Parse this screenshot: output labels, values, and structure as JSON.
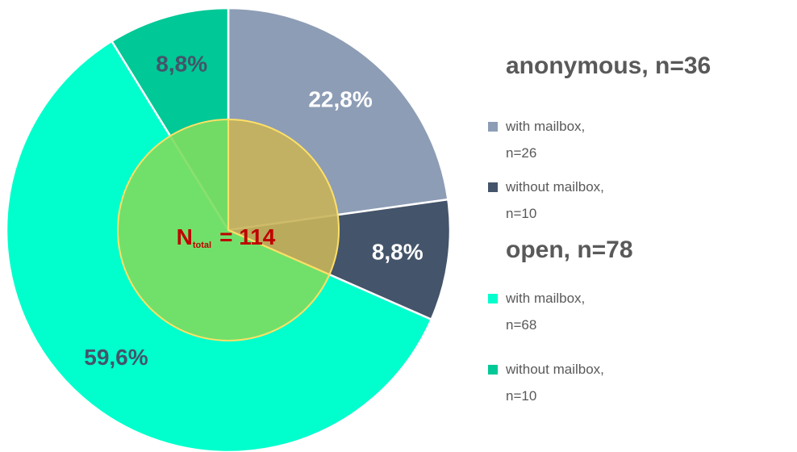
{
  "chart_data": {
    "type": "pie",
    "center_label": {
      "main": "N",
      "sub": "total",
      "rest": "=  114"
    },
    "groups": [
      {
        "name": "anonymous, n=36",
        "color": "#c8b45a",
        "series": [
          {
            "name": "with mailbox,\nn=26",
            "color": "#8d9db6",
            "value": 22.8,
            "value_label": "22,8%",
            "label_color": "#ffffff"
          },
          {
            "name": "without mailbox,\nn=10",
            "color": "#44546a",
            "value": 8.8,
            "value_label": "8,8%",
            "label_color": "#ffffff"
          }
        ]
      },
      {
        "name": "open, n=78",
        "color": "#7ddd5f",
        "series": [
          {
            "name": "with mailbox,\nn=68",
            "color": "#00ffcc",
            "value": 59.6,
            "value_label": "59,6%",
            "label_color": "#44546a"
          },
          {
            "name": "without mailbox,\nn=10",
            "color": "#00c896",
            "value": 8.8,
            "value_label": "8,8%",
            "label_color": "#44546a"
          }
        ]
      }
    ]
  }
}
